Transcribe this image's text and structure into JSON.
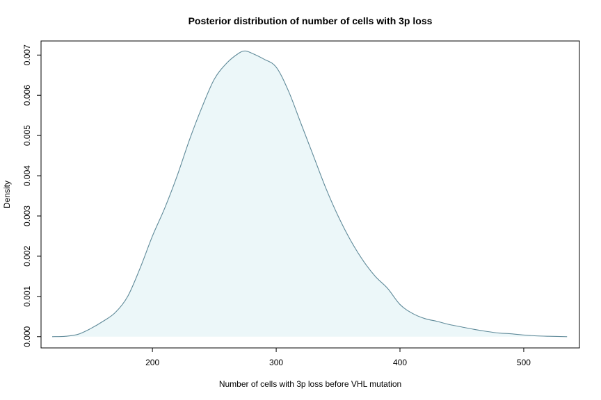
{
  "chart_data": {
    "type": "area",
    "title": "Posterior distribution of number of cells with 3p loss",
    "xlabel": "Number of cells with 3p loss before VHL mutation",
    "ylabel": "Density",
    "xlim": [
      110,
      545
    ],
    "ylim": [
      -0.00028,
      0.00735
    ],
    "x_ticks": [
      200,
      300,
      400,
      500
    ],
    "y_ticks": [
      0.0,
      0.001,
      0.002,
      0.003,
      0.004,
      0.005,
      0.006,
      0.007
    ],
    "x_tick_labels": [
      "200",
      "300",
      "400",
      "500"
    ],
    "y_tick_labels": [
      "0.000",
      "0.001",
      "0.002",
      "0.003",
      "0.004",
      "0.005",
      "0.006",
      "0.007"
    ],
    "grid": false,
    "legend": "none",
    "colors": {
      "line": "#5f8a99",
      "fill": "#ecf7f9",
      "axes": "#000000"
    },
    "series": [
      {
        "x": [
          119,
          130,
          140,
          150,
          160,
          170,
          180,
          190,
          200,
          210,
          220,
          230,
          240,
          250,
          260,
          270,
          275,
          280,
          290,
          300,
          310,
          320,
          330,
          340,
          350,
          360,
          370,
          380,
          390,
          400,
          410,
          420,
          430,
          440,
          450,
          460,
          470,
          480,
          490,
          500,
          510,
          520,
          535
        ],
        "y": [
          0.0,
          1e-05,
          6e-05,
          0.0002,
          0.00038,
          0.0006,
          0.001,
          0.0017,
          0.0025,
          0.0032,
          0.004,
          0.0049,
          0.0057,
          0.0064,
          0.0068,
          0.00705,
          0.0071,
          0.00705,
          0.0069,
          0.0067,
          0.0061,
          0.0053,
          0.0045,
          0.0037,
          0.003,
          0.0024,
          0.0019,
          0.0015,
          0.0012,
          0.0008,
          0.00058,
          0.00045,
          0.00038,
          0.0003,
          0.00024,
          0.00018,
          0.00013,
          9e-05,
          7e-05,
          4e-05,
          2e-05,
          1e-05,
          0.0
        ]
      }
    ]
  }
}
